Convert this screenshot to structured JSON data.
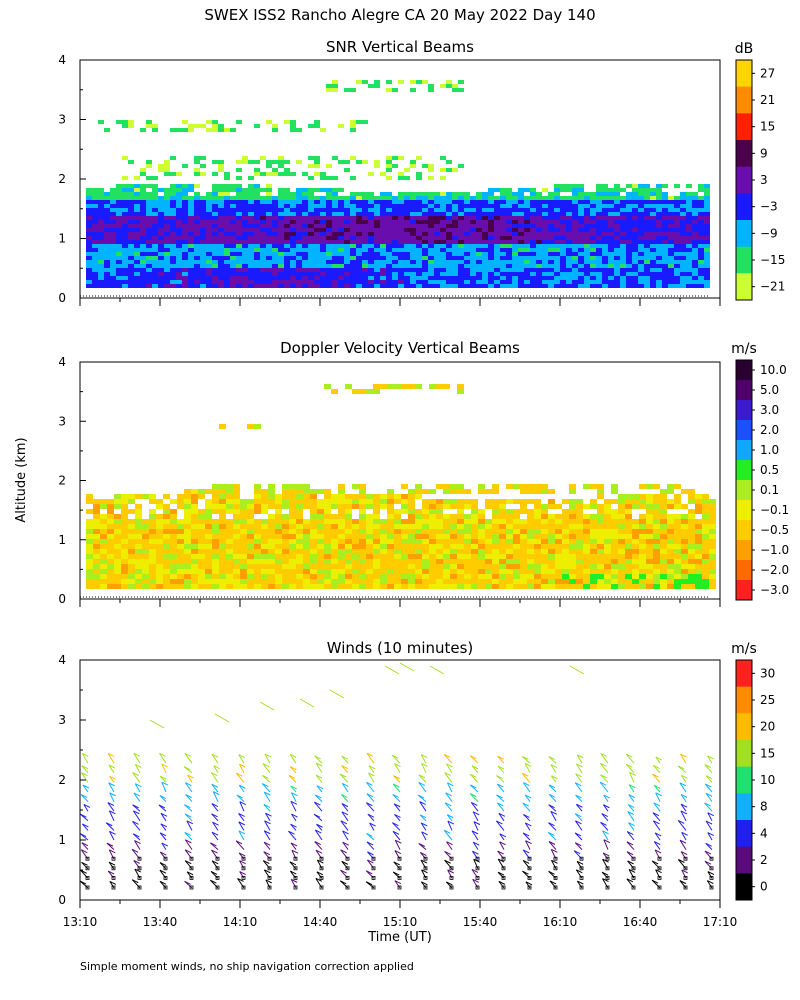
{
  "title": "SWEX ISS2 Rancho Alegre CA  20 May 2022 Day 140",
  "ylabel": "Altitude (km)",
  "xlabel": "Time (UT)",
  "footnote": "Simple moment winds, no ship navigation correction applied",
  "chart_data": [
    {
      "type": "heatmap",
      "title": "SNR Vertical Beams",
      "unit": "dB",
      "ylim": [
        0,
        4
      ],
      "yticks": [
        "0",
        "1",
        "2",
        "3",
        "4"
      ],
      "xlim_hours": [
        13.1667,
        17.1667
      ],
      "colorbar_labels": [
        "27",
        "21",
        "15",
        "9",
        "3",
        "−3",
        "−9",
        "−15",
        "−21"
      ],
      "colorbar_colors": [
        "#ffd500",
        "#ff8c00",
        "#ff2000",
        "#4b004b",
        "#6a0dad",
        "#1a1aff",
        "#00b4ff",
        "#22e060",
        "#ccff33"
      ]
    },
    {
      "type": "heatmap",
      "title": "Doppler Velocity Vertical Beams",
      "unit": "m/s",
      "ylim": [
        0,
        4
      ],
      "yticks": [
        "0",
        "1",
        "2",
        "3",
        "4"
      ],
      "xlim_hours": [
        13.1667,
        17.1667
      ],
      "colorbar_labels": [
        "10.0",
        "5.0",
        "3.0",
        "2.0",
        "1.0",
        "0.5",
        "0.1",
        "−0.1",
        "−0.5",
        "−1.0",
        "−2.0",
        "−3.0"
      ],
      "colorbar_colors": [
        "#2a0030",
        "#50006a",
        "#3a1acc",
        "#1a50ff",
        "#10a8ff",
        "#22ee22",
        "#aaee22",
        "#eeee00",
        "#ffcc00",
        "#ffa000",
        "#ff6a00",
        "#ff2020"
      ]
    },
    {
      "type": "scatter",
      "title": "Winds (10 minutes)",
      "unit": "m/s",
      "ylim": [
        0,
        4
      ],
      "yticks": [
        "0",
        "1",
        "2",
        "3",
        "4"
      ],
      "xticks": [
        "13:10",
        "13:40",
        "14:10",
        "14:40",
        "15:10",
        "15:40",
        "16:10",
        "16:40",
        "17:10"
      ],
      "colorbar_labels": [
        "30",
        "25",
        "20",
        "15",
        "10",
        "8",
        "4",
        "2",
        "0"
      ],
      "colorbar_colors": [
        "#ff2020",
        "#ff8c00",
        "#ffbb00",
        "#a0e020",
        "#20e070",
        "#10b0ff",
        "#2020ee",
        "#5a0a7a",
        "#000000"
      ]
    }
  ]
}
